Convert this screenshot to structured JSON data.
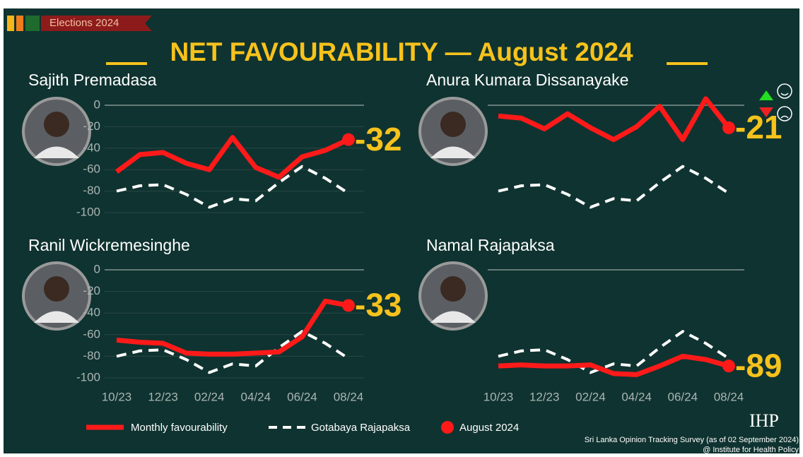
{
  "badge": "Elections 2024",
  "title": "NET FAVOURABILITY — August 2024",
  "legend_marker": "August 2024",
  "logo": "IHP",
  "source": [
    "Sri Lanka Opinion Tracking Survey (as of 02 September 2024)",
    "@ Institute for Health Policy"
  ],
  "chart_data": [
    {
      "type": "line",
      "title": "Sajith Premadasa",
      "ylim": [
        -100,
        0
      ],
      "yticks": [
        0,
        -20,
        -40,
        -60,
        -80,
        -100
      ],
      "grid": true,
      "series": [
        {
          "name": "Monthly favourability",
          "color": "#ff1a1a",
          "style": "solid",
          "values": [
            -62,
            -46,
            -44,
            -54,
            -60,
            -30,
            -58,
            -67,
            -48,
            -42,
            -32
          ]
        },
        {
          "name": "Gotabaya Rajapaksa",
          "color": "#ffffff",
          "style": "dashed",
          "values": [
            -80,
            -75,
            -74,
            -83,
            -95,
            -87,
            -89,
            -72,
            -57,
            -68,
            -82
          ]
        }
      ]
    },
    {
      "type": "line",
      "title": "Anura Kumara Dissanayake",
      "ylim": [
        -100,
        0
      ],
      "grid": false,
      "series": [
        {
          "name": "Monthly favourability",
          "color": "#ff1a1a",
          "style": "solid",
          "values": [
            -10,
            -12,
            -22,
            -8,
            -21,
            -32,
            -20,
            -1,
            -32,
            6,
            -21
          ]
        },
        {
          "name": "Gotabaya Rajapaksa",
          "color": "#ffffff",
          "style": "dashed",
          "values": [
            -80,
            -75,
            -74,
            -83,
            -95,
            -87,
            -89,
            -72,
            -57,
            -68,
            -82
          ]
        }
      ]
    },
    {
      "type": "line",
      "title": "Ranil Wickremesinghe",
      "ylim": [
        -100,
        0
      ],
      "yticks": [
        0,
        -20,
        -40,
        -60,
        -80,
        -100
      ],
      "grid": true,
      "categories": [
        "10/23",
        null,
        "12/23",
        null,
        "02/24",
        null,
        "04/24",
        null,
        "06/24",
        null,
        "08/24"
      ],
      "series": [
        {
          "name": "Monthly favourability",
          "color": "#ff1a1a",
          "style": "solid",
          "values": [
            -65,
            -67,
            -68,
            -77,
            -78,
            -78,
            -77,
            -76,
            -62,
            -29,
            -33
          ]
        },
        {
          "name": "Gotabaya Rajapaksa",
          "color": "#ffffff",
          "style": "dashed",
          "values": [
            -80,
            -75,
            -74,
            -83,
            -95,
            -87,
            -89,
            -72,
            -57,
            -68,
            -82
          ]
        }
      ]
    },
    {
      "type": "line",
      "title": "Namal Rajapaksa",
      "ylim": [
        -100,
        0
      ],
      "grid": false,
      "categories": [
        "10/23",
        null,
        "12/23",
        null,
        "02/24",
        null,
        "04/24",
        null,
        "06/24",
        null,
        "08/24"
      ],
      "series": [
        {
          "name": "Monthly favourability",
          "color": "#ff1a1a",
          "style": "solid",
          "values": [
            -89,
            -88,
            -89,
            -89,
            -88,
            -96,
            -97,
            -89,
            -80,
            -83,
            -89
          ]
        },
        {
          "name": "Gotabaya Rajapaksa",
          "color": "#ffffff",
          "style": "dashed",
          "values": [
            -80,
            -75,
            -74,
            -83,
            -95,
            -87,
            -89,
            -72,
            -57,
            -68,
            -82
          ]
        }
      ]
    }
  ]
}
